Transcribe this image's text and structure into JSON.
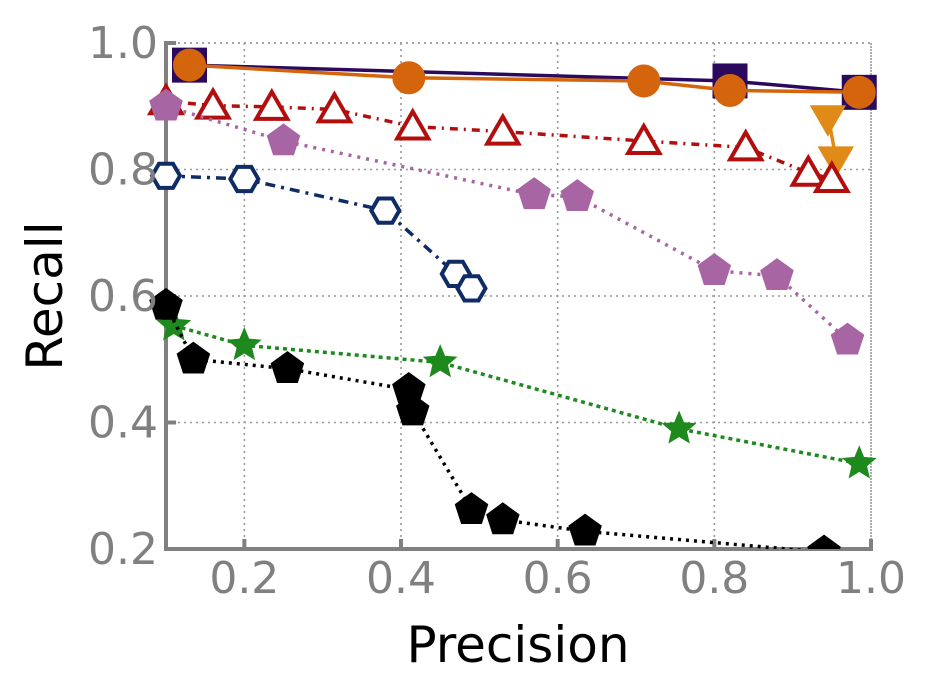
{
  "chart_data": {
    "type": "line",
    "title": "",
    "xlabel": "Precision",
    "ylabel": "Recall",
    "xlim": [
      0.1,
      1.0
    ],
    "ylim": [
      0.2,
      1.0
    ],
    "xticks": [
      "0.2",
      "0.4",
      "0.6",
      "0.8",
      "1.0"
    ],
    "yticks": [
      "0.2",
      "0.4",
      "0.6",
      "0.8",
      "1.0"
    ],
    "grid": true,
    "legend": "none",
    "series": [
      {
        "name": "purple-squares",
        "color": "#2b0a5e",
        "dash": "solid",
        "marker": "square",
        "fill": true,
        "x": [
          0.13,
          0.82,
          0.985
        ],
        "y": [
          0.965,
          0.94,
          0.922
        ]
      },
      {
        "name": "orange-circles",
        "color": "#d4650c",
        "dash": "solid",
        "marker": "circle",
        "fill": true,
        "x": [
          0.13,
          0.41,
          0.71,
          0.82,
          0.985
        ],
        "y": [
          0.965,
          0.945,
          0.94,
          0.925,
          0.922
        ]
      },
      {
        "name": "orange-triangles-down",
        "color": "#e08a17",
        "dash": "solid",
        "marker": "triangle-down",
        "fill": true,
        "x": [
          0.945,
          0.955
        ],
        "y": [
          0.885,
          0.82
        ]
      },
      {
        "name": "red-triangles-up",
        "color": "#b30e0e",
        "dash": "8 6 2 6",
        "marker": "triangle-up",
        "fill": false,
        "x": [
          0.1,
          0.16,
          0.235,
          0.315,
          0.415,
          0.53,
          0.71,
          0.84,
          0.92,
          0.95
        ],
        "y": [
          0.908,
          0.901,
          0.899,
          0.895,
          0.868,
          0.86,
          0.845,
          0.835,
          0.795,
          0.785
        ]
      },
      {
        "name": "pink-pentagons",
        "color": "#a865a3",
        "dash": "3 6",
        "marker": "pentagon",
        "fill": true,
        "x": [
          0.1,
          0.25,
          0.57,
          0.625,
          0.8,
          0.88,
          0.97
        ],
        "y": [
          0.9,
          0.845,
          0.76,
          0.757,
          0.64,
          0.632,
          0.53
        ]
      },
      {
        "name": "blue-hexagons",
        "color": "#0f2c66",
        "dash": "10 6 3 6",
        "marker": "hexagon",
        "fill": false,
        "x": [
          0.1,
          0.2,
          0.38,
          0.47,
          0.49
        ],
        "y": [
          0.79,
          0.785,
          0.735,
          0.635,
          0.612
        ]
      },
      {
        "name": "green-stars",
        "color": "#1e8a1e",
        "dash": "4 4",
        "marker": "star",
        "fill": true,
        "x": [
          0.11,
          0.2,
          0.45,
          0.755,
          0.985
        ],
        "y": [
          0.553,
          0.522,
          0.495,
          0.39,
          0.335
        ]
      },
      {
        "name": "black-pentagons",
        "color": "#000000",
        "dash": "3 5",
        "marker": "pentagon",
        "fill": true,
        "x": [
          0.1,
          0.135,
          0.255,
          0.41,
          0.415,
          0.49,
          0.53,
          0.635,
          0.94
        ],
        "y": [
          0.585,
          0.5,
          0.485,
          0.452,
          0.418,
          0.262,
          0.246,
          0.228,
          0.195
        ]
      }
    ]
  }
}
